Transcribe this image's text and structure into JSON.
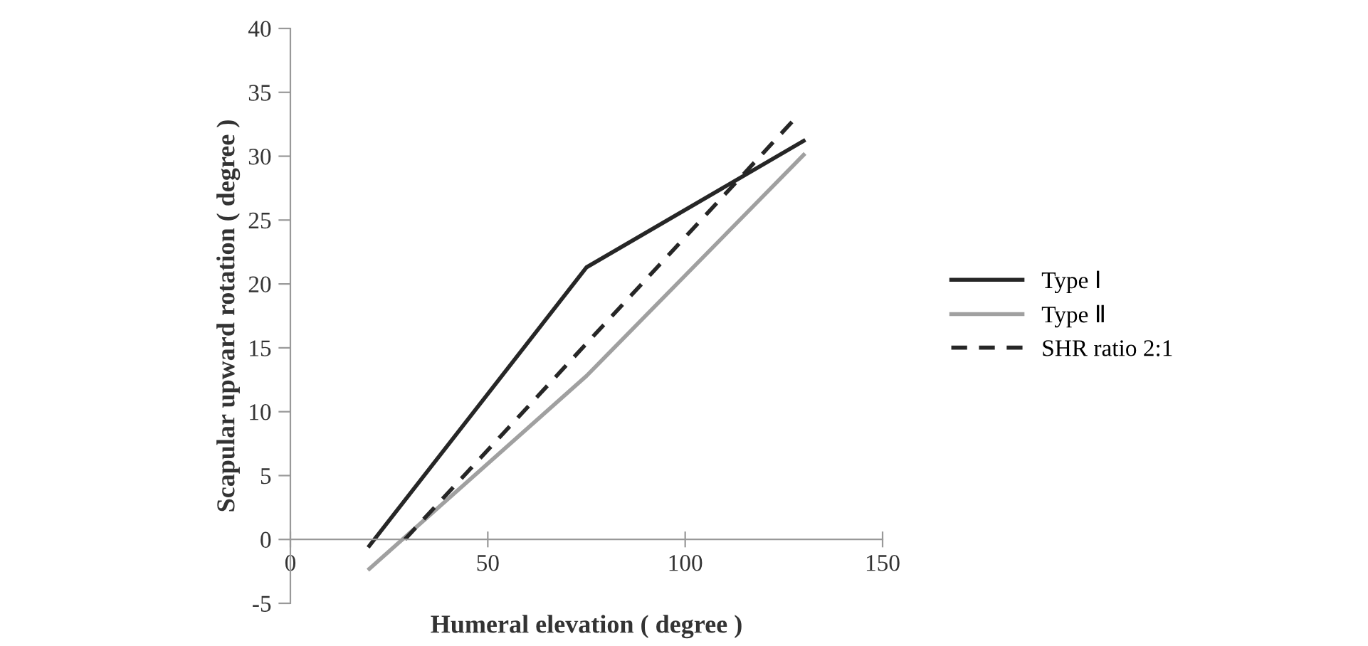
{
  "chart_data": {
    "type": "line",
    "xlabel": "Humeral elevation ( degree )",
    "ylabel": "Scapular upward rotation ( degree )",
    "xlim": [
      0,
      150
    ],
    "xticks": [
      0,
      50,
      100,
      150
    ],
    "ylim": [
      -5,
      40
    ],
    "yticks": [
      -5,
      0,
      5,
      10,
      15,
      20,
      25,
      30,
      35,
      40
    ],
    "grid": false,
    "legend": "right",
    "marker": "none",
    "series": [
      {
        "name": "Type Ⅰ",
        "color": "#262626",
        "x": [
          20,
          75,
          130
        ],
        "values": [
          -0.5,
          21.3,
          31.2
        ],
        "line_style": "solid"
      },
      {
        "name": "Type Ⅱ",
        "color": "#a0a0a0",
        "x": [
          20,
          75,
          130
        ],
        "values": [
          -2.3,
          12.8,
          30.1
        ],
        "line_style": "solid"
      },
      {
        "name": "SHR ratio 2:1",
        "color": "#262626",
        "x": [
          29,
          128
        ],
        "values": [
          0,
          33
        ],
        "line_style": "dashed"
      }
    ]
  }
}
